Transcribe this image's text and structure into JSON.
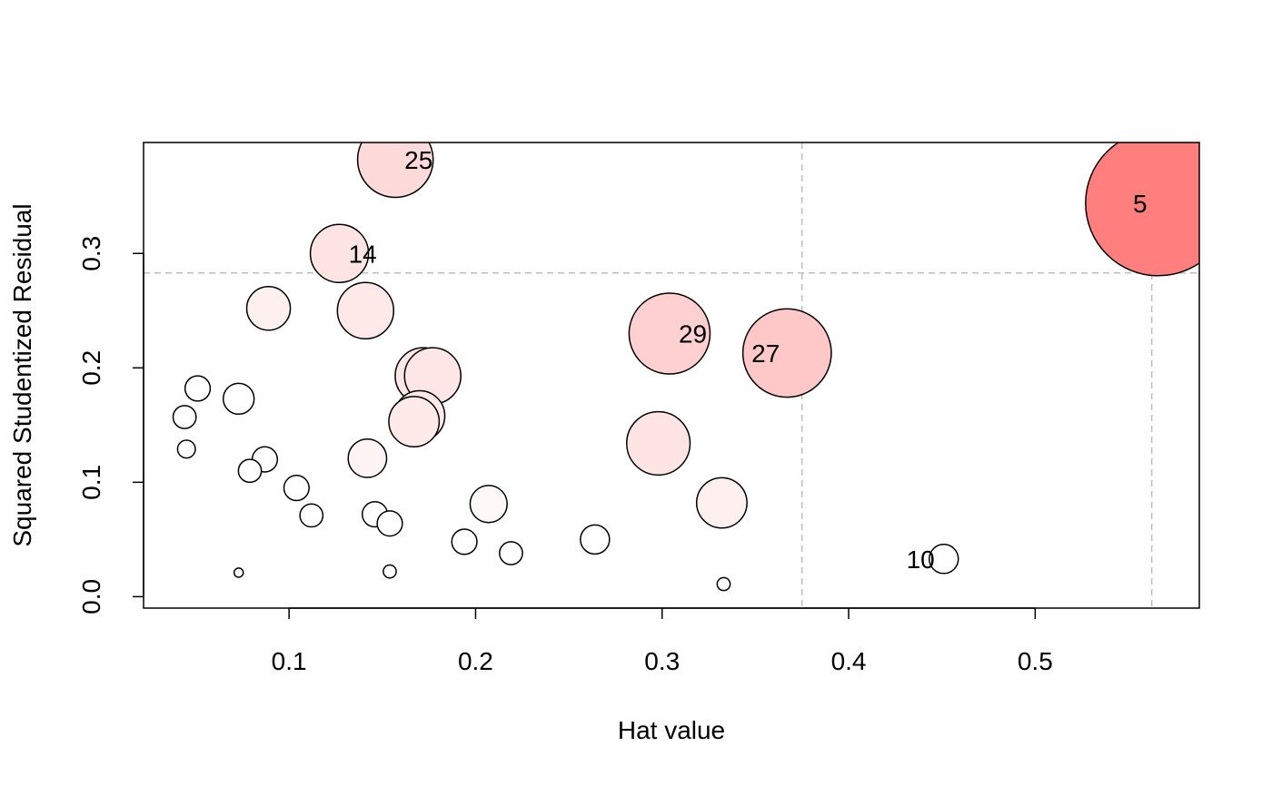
{
  "chart_data": {
    "type": "scatter",
    "title": "",
    "xlabel": "Hat value",
    "ylabel": "Squared Studentized Residual",
    "xlim": [
      0.022,
      0.588
    ],
    "ylim": [
      -0.01,
      0.397
    ],
    "x_ticks": [
      0.1,
      0.2,
      0.3,
      0.4,
      0.5
    ],
    "x_tick_labels": [
      "0.1",
      "0.2",
      "0.3",
      "0.4",
      "0.5"
    ],
    "y_ticks": [
      0.0,
      0.1,
      0.2,
      0.3
    ],
    "y_tick_labels": [
      "0.0",
      "0.1",
      "0.2",
      "0.3"
    ],
    "reference_lines": {
      "x": [
        0.375,
        0.5625
      ],
      "y": [
        0.283
      ],
      "color": "#bebebe",
      "style": "dashed"
    },
    "bubble_size": "Cook's distance (relative, 0-1)",
    "points": [
      {
        "x": 0.157,
        "y": 0.382,
        "size": 0.27,
        "fill": "#ffdada",
        "label": "25"
      },
      {
        "x": 0.127,
        "y": 0.3,
        "size": 0.16,
        "fill": "#ffe4e4",
        "label": "14"
      },
      {
        "x": 0.089,
        "y": 0.252,
        "size": 0.09,
        "fill": "#fff0f0",
        "label": ""
      },
      {
        "x": 0.141,
        "y": 0.25,
        "size": 0.15,
        "fill": "#ffe8e8",
        "label": ""
      },
      {
        "x": 0.304,
        "y": 0.23,
        "size": 0.31,
        "fill": "#ffd0d0",
        "label": "29"
      },
      {
        "x": 0.367,
        "y": 0.213,
        "size": 0.37,
        "fill": "#ffc8c8",
        "label": "27"
      },
      {
        "x": 0.566,
        "y": 0.344,
        "size": 1.0,
        "fill": "#ff7f7f",
        "label": "5"
      },
      {
        "x": 0.172,
        "y": 0.193,
        "size": 0.15,
        "fill": "#ffe6e6",
        "label": ""
      },
      {
        "x": 0.177,
        "y": 0.193,
        "size": 0.15,
        "fill": "#ffe6e6",
        "label": ""
      },
      {
        "x": 0.17,
        "y": 0.158,
        "size": 0.12,
        "fill": "#ffeaea",
        "label": ""
      },
      {
        "x": 0.167,
        "y": 0.153,
        "size": 0.12,
        "fill": "#ffeaea",
        "label": ""
      },
      {
        "x": 0.298,
        "y": 0.134,
        "size": 0.19,
        "fill": "#ffe4e4",
        "label": ""
      },
      {
        "x": 0.332,
        "y": 0.082,
        "size": 0.12,
        "fill": "#fff0f0",
        "label": ""
      },
      {
        "x": 0.051,
        "y": 0.182,
        "size": 0.03,
        "fill": "#ffffff",
        "label": ""
      },
      {
        "x": 0.073,
        "y": 0.173,
        "size": 0.045,
        "fill": "#ffffff",
        "label": ""
      },
      {
        "x": 0.044,
        "y": 0.157,
        "size": 0.025,
        "fill": "#ffffff",
        "label": ""
      },
      {
        "x": 0.045,
        "y": 0.129,
        "size": 0.015,
        "fill": "#ffffff",
        "label": ""
      },
      {
        "x": 0.087,
        "y": 0.12,
        "size": 0.03,
        "fill": "#ffffff",
        "label": ""
      },
      {
        "x": 0.079,
        "y": 0.11,
        "size": 0.025,
        "fill": "#ffffff",
        "label": ""
      },
      {
        "x": 0.142,
        "y": 0.121,
        "size": 0.07,
        "fill": "#fff4f4",
        "label": ""
      },
      {
        "x": 0.104,
        "y": 0.095,
        "size": 0.03,
        "fill": "#ffffff",
        "label": ""
      },
      {
        "x": 0.112,
        "y": 0.071,
        "size": 0.025,
        "fill": "#ffffff",
        "label": ""
      },
      {
        "x": 0.146,
        "y": 0.072,
        "size": 0.03,
        "fill": "#ffffff",
        "label": ""
      },
      {
        "x": 0.154,
        "y": 0.064,
        "size": 0.03,
        "fill": "#ffffff",
        "label": ""
      },
      {
        "x": 0.207,
        "y": 0.081,
        "size": 0.065,
        "fill": "#fff8f8",
        "label": ""
      },
      {
        "x": 0.194,
        "y": 0.048,
        "size": 0.03,
        "fill": "#ffffff",
        "label": ""
      },
      {
        "x": 0.219,
        "y": 0.038,
        "size": 0.025,
        "fill": "#ffffff",
        "label": ""
      },
      {
        "x": 0.264,
        "y": 0.05,
        "size": 0.04,
        "fill": "#ffffff",
        "label": ""
      },
      {
        "x": 0.073,
        "y": 0.021,
        "size": 0.004,
        "fill": "#ffffff",
        "label": ""
      },
      {
        "x": 0.154,
        "y": 0.022,
        "size": 0.008,
        "fill": "#ffffff",
        "label": ""
      },
      {
        "x": 0.333,
        "y": 0.011,
        "size": 0.008,
        "fill": "#ffffff",
        "label": ""
      },
      {
        "x": 0.451,
        "y": 0.033,
        "size": 0.04,
        "fill": "#ffffff",
        "label": "10"
      }
    ]
  }
}
